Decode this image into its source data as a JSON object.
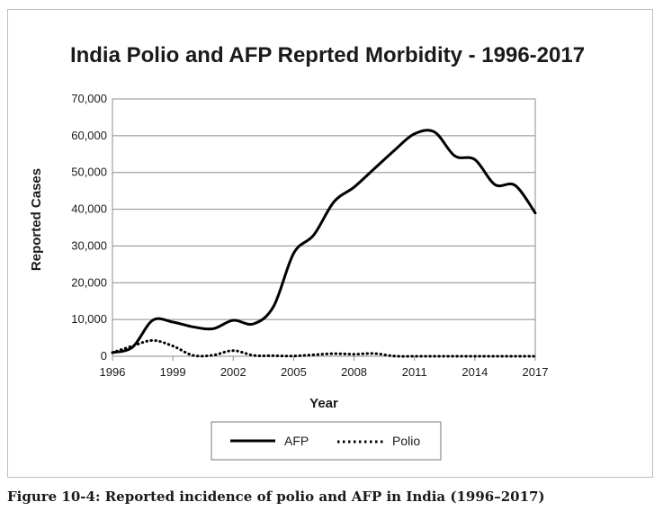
{
  "chart_data": {
    "type": "line",
    "title": "India Polio and AFP Reprted Morbidity - 1996-2017",
    "xlabel": "Year",
    "ylabel": "Reported Cases",
    "xlim": [
      1996,
      2017
    ],
    "ylim": [
      0,
      70000
    ],
    "xticks": [
      1996,
      1999,
      2002,
      2005,
      2008,
      2011,
      2014,
      2017
    ],
    "xtick_labels": [
      "1996",
      "1999",
      "2002",
      "2005",
      "2008",
      "2011",
      "2014",
      "2017"
    ],
    "yticks": [
      0,
      10000,
      20000,
      30000,
      40000,
      50000,
      60000,
      70000
    ],
    "ytick_labels": [
      "0",
      "10,000",
      "20,000",
      "30,000",
      "40,000",
      "50,000",
      "60,000",
      "70,000"
    ],
    "grid": "horizontal",
    "legend_position": "bottom",
    "x": [
      1996,
      1997,
      1998,
      1999,
      2000,
      2001,
      2002,
      2003,
      2004,
      2005,
      2006,
      2007,
      2008,
      2009,
      2010,
      2011,
      2012,
      2013,
      2014,
      2015,
      2016,
      2017
    ],
    "series": [
      {
        "name": "AFP",
        "style": "solid",
        "color": "#000000",
        "values": [
          1000,
          2500,
          9800,
          9300,
          8000,
          7500,
          9800,
          8800,
          13500,
          28000,
          33000,
          42000,
          46000,
          51000,
          56000,
          60500,
          61000,
          54500,
          53500,
          46700,
          46500,
          39000
        ]
      },
      {
        "name": "Polio",
        "style": "dotted",
        "color": "#000000",
        "values": [
          1000,
          2800,
          4300,
          2800,
          250,
          300,
          1550,
          250,
          150,
          70,
          400,
          700,
          560,
          740,
          40,
          1,
          0,
          0,
          0,
          0,
          0,
          0
        ]
      }
    ]
  },
  "caption": "Figure 10-4: Reported incidence of polio and AFP in India (1996–2017)"
}
